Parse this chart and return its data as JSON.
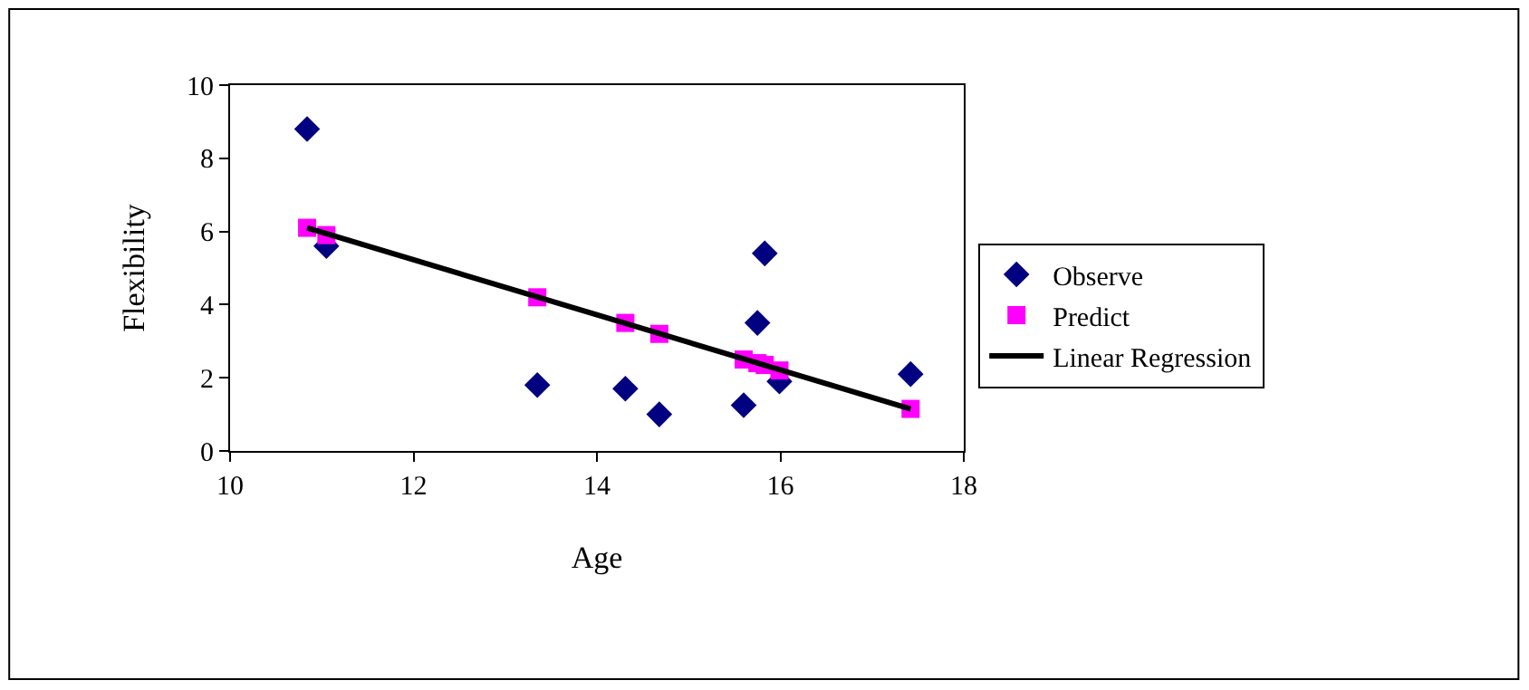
{
  "chart_data": {
    "type": "scatter",
    "xlabel": "Age",
    "ylabel": "Flexibility",
    "xlim": [
      10,
      18
    ],
    "xticks": [
      10,
      12,
      14,
      16,
      18
    ],
    "ylim": [
      0,
      10
    ],
    "yticks": [
      0,
      2,
      4,
      6,
      8,
      10
    ],
    "legend": "right",
    "series": [
      {
        "name": "Observe",
        "color": "#000080",
        "marker": "diamond",
        "x": [
          10.84,
          11.05,
          13.35,
          14.31,
          14.68,
          15.6,
          15.75,
          15.83,
          15.99,
          17.42
        ],
        "values": [
          8.8,
          5.6,
          1.8,
          1.7,
          1.0,
          1.25,
          3.5,
          5.4,
          1.9,
          2.1
        ]
      },
      {
        "name": "Predict",
        "color": "#ff00ff",
        "marker": "square",
        "x": [
          10.84,
          11.05,
          13.35,
          14.31,
          14.68,
          15.6,
          15.75,
          15.83,
          15.99,
          17.42
        ],
        "values": [
          6.1,
          5.9,
          4.2,
          3.5,
          3.2,
          2.5,
          2.4,
          2.35,
          2.2,
          1.15
        ]
      },
      {
        "name": "Linear Regression",
        "color": "#000000",
        "type": "line",
        "marker": "none",
        "line_style": "solid",
        "x": [
          10.84,
          17.42
        ],
        "values": [
          6.1,
          1.15
        ]
      }
    ]
  }
}
